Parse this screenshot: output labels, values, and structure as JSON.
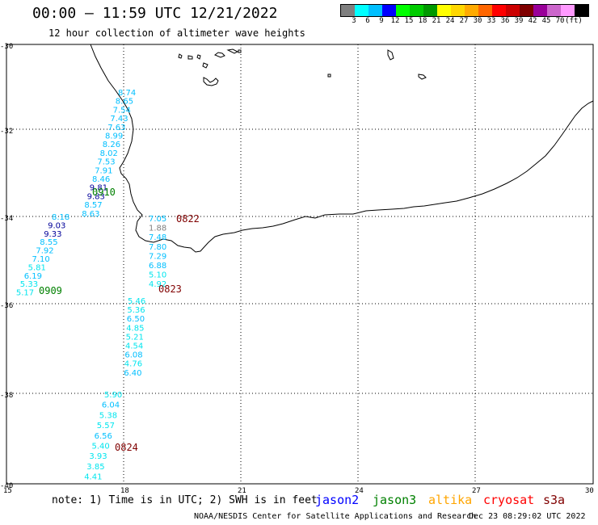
{
  "header": {
    "title": "00:00 – 11:59 UTC 12/21/2022",
    "subtitle": "12 hour collection of altimeter wave heights"
  },
  "color_scale": {
    "colors": [
      "#7f7f7f",
      "#00ffff",
      "#00bfff",
      "#0000ff",
      "#00ff00",
      "#00cc00",
      "#009900",
      "#ffff00",
      "#ffd700",
      "#ffaa00",
      "#ff6600",
      "#ff0000",
      "#cc0000",
      "#7f0000",
      "#990099",
      "#cc66cc",
      "#ff99ff",
      "#000000"
    ],
    "labels": [
      "3",
      "6",
      "9",
      "12",
      "15",
      "18",
      "21",
      "24",
      "27",
      "30",
      "33",
      "36",
      "39",
      "42",
      "45",
      "70",
      "(ft)"
    ]
  },
  "axes": {
    "lon_labels": [
      "15",
      "18",
      "21",
      "24",
      "27",
      "30"
    ],
    "lat_labels": [
      "-30",
      "-32",
      "-34",
      "-36",
      "-38",
      "-40"
    ]
  },
  "tracks": [
    {
      "label": "0910",
      "label_color": "#008000",
      "points": [
        {
          "v": "8.74",
          "c": "#00bfff"
        },
        {
          "v": "8.65",
          "c": "#00bfff"
        },
        {
          "v": "7.54",
          "c": "#00bfff"
        },
        {
          "v": "7.43",
          "c": "#00bfff"
        },
        {
          "v": "7.63",
          "c": "#00bfff"
        },
        {
          "v": "8.99",
          "c": "#00bfff"
        },
        {
          "v": "8.26",
          "c": "#00bfff"
        },
        {
          "v": "8.02",
          "c": "#00bfff"
        },
        {
          "v": "7.53",
          "c": "#00bfff"
        },
        {
          "v": "7.91",
          "c": "#00bfff"
        },
        {
          "v": "8.46",
          "c": "#00bfff"
        },
        {
          "v": "9.81",
          "c": "#000099"
        },
        {
          "v": "9.83",
          "c": "#000099"
        },
        {
          "v": "8.57",
          "c": "#00bfff"
        },
        {
          "v": "8.63",
          "c": "#00bfff"
        }
      ]
    },
    {
      "label": "0909",
      "label_color": "#008000",
      "points": [
        {
          "v": "8.18",
          "c": "#00bfff"
        },
        {
          "v": "9.03",
          "c": "#000099"
        },
        {
          "v": "9.33",
          "c": "#000099"
        },
        {
          "v": "8.55",
          "c": "#00bfff"
        },
        {
          "v": "7.92",
          "c": "#00bfff"
        },
        {
          "v": "7.10",
          "c": "#00bfff"
        },
        {
          "v": "5.81",
          "c": "#00e5ee"
        },
        {
          "v": "6.19",
          "c": "#00bfff"
        },
        {
          "v": "5.33",
          "c": "#00e5ee"
        },
        {
          "v": "5.17",
          "c": "#00e5ee"
        }
      ]
    },
    {
      "label": "0822",
      "label_color": "#800000",
      "points": [
        {
          "v": "7.05",
          "c": "#00bfff"
        },
        {
          "v": "1.88",
          "c": "#7f7f7f"
        },
        {
          "v": "7.48",
          "c": "#00bfff"
        },
        {
          "v": "7.80",
          "c": "#00bfff"
        },
        {
          "v": "7.29",
          "c": "#00bfff"
        },
        {
          "v": "6.88",
          "c": "#00bfff"
        },
        {
          "v": "5.10",
          "c": "#00e5ee"
        },
        {
          "v": "4.92",
          "c": "#00e5ee"
        }
      ]
    },
    {
      "label": "0823",
      "label_color": "#800000",
      "points": [
        {
          "v": "5.46",
          "c": "#00e5ee"
        },
        {
          "v": "5.36",
          "c": "#00e5ee"
        },
        {
          "v": "6.50",
          "c": "#00bfff"
        },
        {
          "v": "4.85",
          "c": "#00e5ee"
        },
        {
          "v": "5.21",
          "c": "#00e5ee"
        },
        {
          "v": "4.54",
          "c": "#00e5ee"
        },
        {
          "v": "6.08",
          "c": "#00bfff"
        },
        {
          "v": "4.76",
          "c": "#00e5ee"
        },
        {
          "v": "6.40",
          "c": "#00bfff"
        }
      ]
    },
    {
      "label": "0824",
      "label_color": "#800000",
      "points": [
        {
          "v": "5.90",
          "c": "#00e5ee"
        },
        {
          "v": "6.04",
          "c": "#00bfff"
        },
        {
          "v": "5.38",
          "c": "#00e5ee"
        },
        {
          "v": "5.57",
          "c": "#00e5ee"
        },
        {
          "v": "6.56",
          "c": "#00bfff"
        },
        {
          "v": "5.40",
          "c": "#00e5ee"
        },
        {
          "v": "3.93",
          "c": "#00e5ee"
        },
        {
          "v": "3.85",
          "c": "#00e5ee"
        },
        {
          "v": "4.41",
          "c": "#00e5ee"
        }
      ]
    }
  ],
  "footer": {
    "note": "note: 1) Time is in UTC; 2) SWH is in feet",
    "satellites": [
      {
        "name": "jason2",
        "color": "#0000ff"
      },
      {
        "name": "jason3",
        "color": "#008000"
      },
      {
        "name": "altika",
        "color": "#ffa500"
      },
      {
        "name": "cryosat",
        "color": "#ff0000"
      },
      {
        "name": "s3a",
        "color": "#800000"
      }
    ],
    "credit": "NOAA/NESDIS Center for Satellite Applications and Research",
    "timestamp": "Dec 23 08:29:02 UTC 2022"
  }
}
